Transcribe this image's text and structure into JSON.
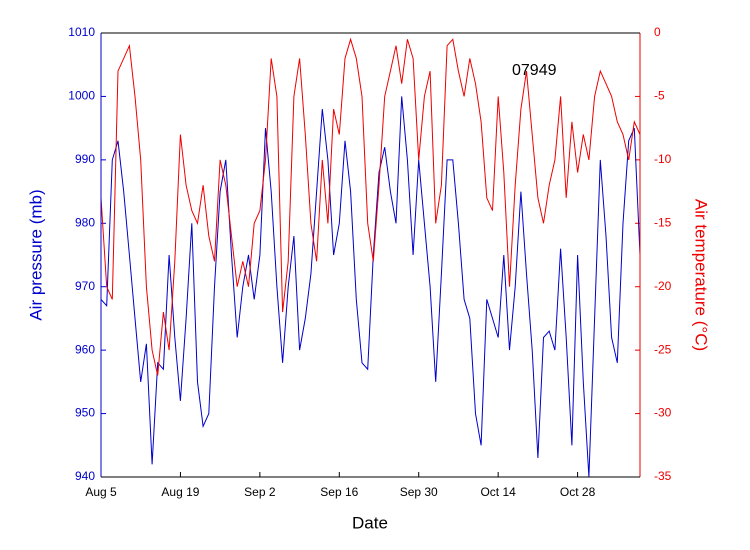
{
  "chart_data": {
    "type": "line",
    "xlabel": "Date",
    "ylabel": "Air pressure (mb)",
    "y2label": "Air temperature (°C)",
    "annotation": "07949",
    "categories": [
      "Aug 5",
      "Aug 6",
      "Aug 7",
      "Aug 8",
      "Aug 9",
      "Aug 10",
      "Aug 11",
      "Aug 12",
      "Aug 13",
      "Aug 14",
      "Aug 15",
      "Aug 16",
      "Aug 17",
      "Aug 18",
      "Aug 19",
      "Aug 20",
      "Aug 21",
      "Aug 22",
      "Aug 23",
      "Aug 24",
      "Aug 25",
      "Aug 26",
      "Aug 27",
      "Aug 28",
      "Aug 29",
      "Aug 30",
      "Aug 31",
      "Sep 1",
      "Sep 2",
      "Sep 3",
      "Sep 4",
      "Sep 5",
      "Sep 6",
      "Sep 7",
      "Sep 8",
      "Sep 9",
      "Sep 10",
      "Sep 11",
      "Sep 12",
      "Sep 13",
      "Sep 14",
      "Sep 15",
      "Sep 16",
      "Sep 17",
      "Sep 18",
      "Sep 19",
      "Sep 20",
      "Sep 21",
      "Sep 22",
      "Sep 23",
      "Sep 24",
      "Sep 25",
      "Sep 26",
      "Sep 27",
      "Sep 28",
      "Sep 29",
      "Sep 30",
      "Oct 1",
      "Oct 2",
      "Oct 3",
      "Oct 4",
      "Oct 5",
      "Oct 6",
      "Oct 7",
      "Oct 8",
      "Oct 9",
      "Oct 10",
      "Oct 11",
      "Oct 12",
      "Oct 13",
      "Oct 14",
      "Oct 15",
      "Oct 16",
      "Oct 17",
      "Oct 18",
      "Oct 19",
      "Oct 20",
      "Oct 21",
      "Oct 22",
      "Oct 23",
      "Oct 24",
      "Oct 25",
      "Oct 26",
      "Oct 27",
      "Oct 28",
      "Oct 29",
      "Oct 30",
      "Oct 31",
      "Nov 1",
      "Nov 2",
      "Nov 3",
      "Nov 4",
      "Nov 5",
      "Nov 6",
      "Nov 7",
      "Nov 8"
    ],
    "series": [
      {
        "name": "Air pressure",
        "color": "#0000cc",
        "axis": "y",
        "values": [
          968,
          967,
          990,
          993,
          985,
          975,
          965,
          955,
          961,
          942,
          958,
          957,
          975,
          962,
          952,
          965,
          980,
          955,
          948,
          950,
          970,
          985,
          990,
          975,
          962,
          970,
          975,
          968,
          975,
          995,
          985,
          970,
          958,
          970,
          978,
          960,
          965,
          972,
          985,
          998,
          990,
          975,
          980,
          993,
          985,
          968,
          958,
          957,
          975,
          988,
          992,
          985,
          980,
          1000,
          990,
          975,
          990,
          980,
          970,
          955,
          972,
          990,
          990,
          980,
          968,
          965,
          950,
          945,
          968,
          965,
          962,
          975,
          960,
          970,
          985,
          972,
          960,
          943,
          962,
          963,
          960,
          976,
          962,
          945,
          975,
          955,
          940,
          965,
          990,
          978,
          962,
          958,
          980,
          993,
          995,
          975
        ]
      },
      {
        "name": "Air temperature",
        "color": "#ee0000",
        "axis": "y2",
        "values": [
          -13,
          -20,
          -21,
          -3,
          -2,
          -1,
          -5,
          -10,
          -20,
          -25,
          -27,
          -22,
          -25,
          -18,
          -8,
          -12,
          -14,
          -15,
          -12,
          -16,
          -18,
          -10,
          -12,
          -16,
          -20,
          -18,
          -20,
          -15,
          -14,
          -10,
          -2,
          -5,
          -22,
          -18,
          -5,
          -2,
          -8,
          -15,
          -18,
          -10,
          -15,
          -6,
          -8,
          -2,
          -0.5,
          -2,
          -5,
          -15,
          -18,
          -12,
          -5,
          -3,
          -1,
          -4,
          -0.5,
          -2,
          -10,
          -5,
          -3,
          -15,
          -12,
          -1,
          -0.5,
          -3,
          -5,
          -2,
          -4,
          -7,
          -13,
          -14,
          -5,
          -11,
          -20,
          -12,
          -6,
          -3,
          -8,
          -13,
          -15,
          -12,
          -10,
          -5,
          -13,
          -7,
          -11,
          -8,
          -10,
          -5,
          -3,
          -4,
          -5,
          -7,
          -8,
          -10,
          -7,
          -8
        ]
      }
    ],
    "xlim": [
      "Aug 5",
      "Nov 8"
    ],
    "xticks": [
      "Aug 5",
      "Aug 19",
      "Sep 2",
      "Sep 16",
      "Sep 30",
      "Oct 14",
      "Oct 28"
    ],
    "ylim": [
      940,
      1010
    ],
    "yticks": [
      940,
      950,
      960,
      970,
      980,
      990,
      1000,
      1010
    ],
    "y2lim": [
      -35,
      0
    ],
    "y2ticks": [
      -35,
      -30,
      -25,
      -20,
      -15,
      -10,
      -5,
      0
    ],
    "grid": false
  }
}
